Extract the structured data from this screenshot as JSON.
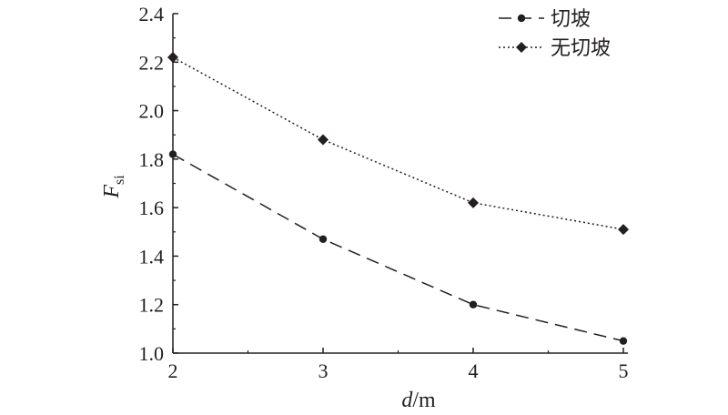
{
  "chart_data": {
    "type": "line",
    "x": [
      2,
      3,
      4,
      5
    ],
    "xlim": [
      2,
      5
    ],
    "ylim": [
      1.0,
      2.4
    ],
    "x_ticks": [
      "2",
      "3",
      "4",
      "5"
    ],
    "y_ticks": [
      "1.0",
      "1.2",
      "1.4",
      "1.6",
      "1.8",
      "2.0",
      "2.2",
      "2.4"
    ],
    "xlabel": {
      "italic": "d",
      "rest": "/m"
    },
    "ylabel": {
      "main": "F",
      "sub": "si"
    },
    "grid": false,
    "legend": "top-right",
    "series": [
      {
        "name": "切坡",
        "values": [
          1.82,
          1.47,
          1.2,
          1.05
        ],
        "marker": "circle",
        "line_style": "dashed"
      },
      {
        "name": "无切坡",
        "values": [
          2.22,
          1.88,
          1.62,
          1.51
        ],
        "marker": "diamond",
        "line_style": "dotted"
      }
    ],
    "colors": {
      "line": "#231f20",
      "axis": "#231f20"
    }
  }
}
